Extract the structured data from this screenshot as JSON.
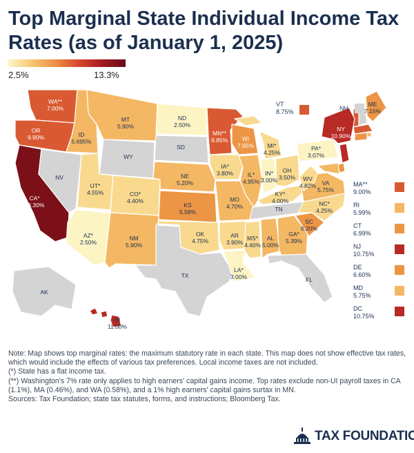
{
  "title": "Top Marginal State Individual Income Tax Rates (as of January 1, 2025)",
  "legend": {
    "min": "2.5%",
    "max": "13.3%"
  },
  "colors": {
    "none": "#d4d4d4",
    "r1": "#fdf4c4",
    "r2": "#f9d98e",
    "r3": "#f4b763",
    "r4": "#ec9545",
    "r5": "#d95a32",
    "r6": "#b82a26",
    "r7": "#7b1018"
  },
  "states": {
    "WA": {
      "name": "WA**",
      "rate": "7.00%"
    },
    "OR": {
      "name": "OR",
      "rate": "9.90%"
    },
    "CA": {
      "name": "CA*",
      "rate": "13.30%"
    },
    "NV": {
      "name": "NV",
      "rate": ""
    },
    "ID": {
      "name": "ID",
      "rate": "5.695%"
    },
    "MT": {
      "name": "MT",
      "rate": "5.90%"
    },
    "WY": {
      "name": "WY",
      "rate": ""
    },
    "UT": {
      "name": "UT*",
      "rate": "4.55%"
    },
    "AZ": {
      "name": "AZ*",
      "rate": "2.50%"
    },
    "CO": {
      "name": "CO*",
      "rate": "4.40%"
    },
    "NM": {
      "name": "NM",
      "rate": "5.90%"
    },
    "ND": {
      "name": "ND",
      "rate": "2.50%"
    },
    "SD": {
      "name": "SD",
      "rate": ""
    },
    "NE": {
      "name": "NE",
      "rate": "5.20%"
    },
    "KS": {
      "name": "KS",
      "rate": "5.58%"
    },
    "OK": {
      "name": "OK",
      "rate": "4.75%"
    },
    "TX": {
      "name": "TX",
      "rate": ""
    },
    "MN": {
      "name": "MN**",
      "rate": "9.85%"
    },
    "IA": {
      "name": "IA*",
      "rate": "3.80%"
    },
    "MO": {
      "name": "MO",
      "rate": "4.70%"
    },
    "AR": {
      "name": "AR",
      "rate": "3.90%"
    },
    "LA": {
      "name": "LA*",
      "rate": "3.00%"
    },
    "WI": {
      "name": "WI",
      "rate": "7.65%"
    },
    "IL": {
      "name": "IL*",
      "rate": "4.95%"
    },
    "MI": {
      "name": "MI*",
      "rate": "4.25%"
    },
    "IN": {
      "name": "IN*",
      "rate": "3.00%"
    },
    "OH": {
      "name": "OH",
      "rate": "3.50%"
    },
    "KY": {
      "name": "KY*",
      "rate": "4.00%"
    },
    "TN": {
      "name": "TN",
      "rate": ""
    },
    "MS": {
      "name": "MS*",
      "rate": "4.40%"
    },
    "AL": {
      "name": "AL",
      "rate": "5.00%"
    },
    "GA": {
      "name": "GA*",
      "rate": "5.39%"
    },
    "FL": {
      "name": "FL",
      "rate": ""
    },
    "SC": {
      "name": "SC",
      "rate": "6.20%"
    },
    "NC": {
      "name": "NC*",
      "rate": "4.25%"
    },
    "VA": {
      "name": "VA",
      "rate": "5.75%"
    },
    "WV": {
      "name": "WV",
      "rate": "4.82%"
    },
    "PA": {
      "name": "PA*",
      "rate": "3.07%"
    },
    "NY": {
      "name": "NY",
      "rate": "10.90%"
    },
    "ME": {
      "name": "ME",
      "rate": "7.15%"
    },
    "AK": {
      "name": "AK",
      "rate": ""
    },
    "HI": {
      "name": "HI",
      "rate": "11.00%"
    }
  },
  "vt": {
    "name": "VT",
    "rate": "8.75%"
  },
  "nh": {
    "name": "NH"
  },
  "northeast": [
    {
      "name": "MA**",
      "rate": "9.00%",
      "color": "#d95a32"
    },
    {
      "name": "RI",
      "rate": "5.99%",
      "color": "#f4b763"
    },
    {
      "name": "CT",
      "rate": "6.99%",
      "color": "#ec9545"
    },
    {
      "name": "NJ",
      "rate": "10.75%",
      "color": "#b82a26"
    },
    {
      "name": "DE",
      "rate": "6.60%",
      "color": "#ec9545"
    },
    {
      "name": "MD",
      "rate": "5.75%",
      "color": "#f4b763"
    },
    {
      "name": "DC",
      "rate": "10.75%",
      "color": "#b82a26"
    }
  ],
  "notes": [
    "Note: Map shows top marginal rates: the maximum statutory rate in each state. This map does not show effective tax rates, which would include the effects of various tax preferences. Local income taxes are not included.",
    "(*) State has a flat income tax.",
    "(**) Washington's 7% rate only applies to high earners' capital gains income. Top rates exclude non-UI payroll taxes in CA (1.1%), MA (0.46%), and WA (0.58%), and a 1% high earners' capital gains surtax in MN.",
    "Sources: Tax Foundation; state tax statutes, forms, and instructions; Bloomberg Tax."
  ],
  "logo": "TAX FOUNDATION"
}
